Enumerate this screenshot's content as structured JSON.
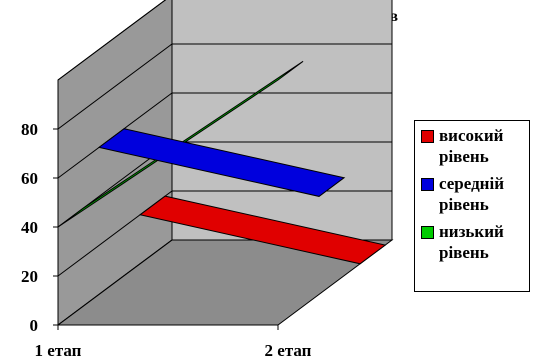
{
  "chart_data": {
    "type": "line",
    "title": "«Фантастична тварина» Фурманов",
    "categories": [
      "1 етап",
      "2 етап"
    ],
    "series": [
      {
        "name": "високий рівень",
        "values": [
          20,
          0
        ],
        "color": "#e00000"
      },
      {
        "name": "середній рівень",
        "values": [
          60,
          40
        ],
        "color": "#0000dd"
      },
      {
        "name": "низький рівень",
        "values": [
          40,
          100
        ],
        "color": "#00bb00"
      }
    ],
    "y_ticks": [
      0,
      20,
      40,
      60,
      80
    ],
    "ylim": [
      0,
      100
    ],
    "legend": "right",
    "grid": true,
    "style": "3d"
  }
}
